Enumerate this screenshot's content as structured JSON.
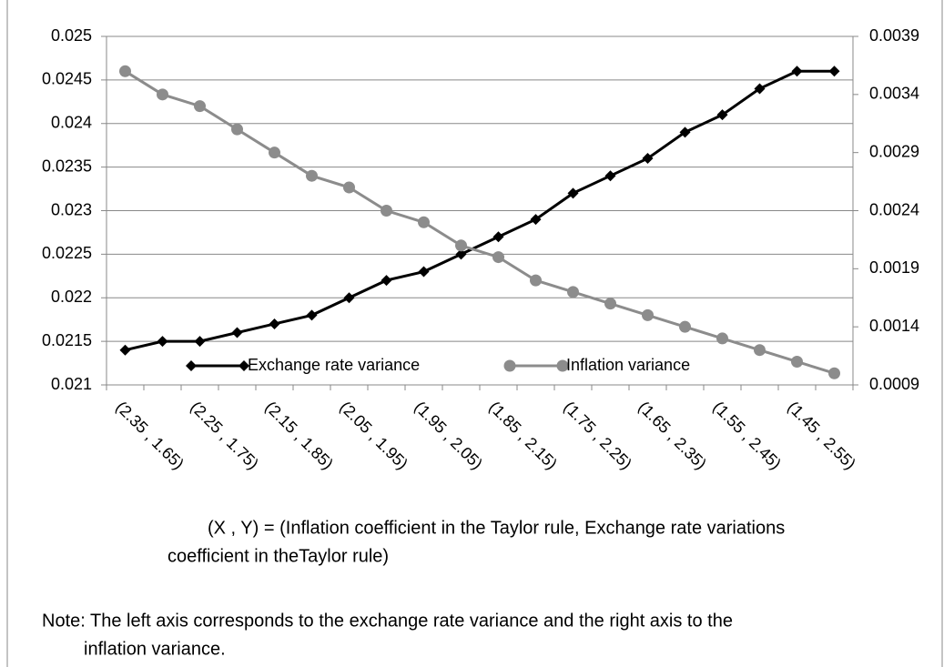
{
  "chart_data": {
    "type": "line",
    "categories": [
      "(2.35 , 1.65)",
      null,
      "(2.25 , 1.75)",
      null,
      "(2.15 , 1.85)",
      null,
      "(2.05 , 1.95)",
      null,
      "(1.95 , 2.05)",
      null,
      "(1.85 , 2.15)",
      null,
      "(1.75 , 2.25)",
      null,
      "(1.65 , 2.35)",
      null,
      "(1.55 , 2.45)",
      null,
      "(1.45 , 2.55)",
      null
    ],
    "series": [
      {
        "name": "Exchange rate variance",
        "color": "#000000",
        "marker": "diamond",
        "values": [
          0.0214,
          0.0215,
          0.0215,
          0.0216,
          0.0217,
          0.0218,
          0.022,
          0.0222,
          0.0223,
          0.0225,
          0.0227,
          0.0229,
          0.0232,
          0.0234,
          0.0236,
          0.0239,
          0.0241,
          0.0244,
          0.0246,
          0.0246
        ]
      },
      {
        "name": "Inflation variance",
        "color": "#8c8c8c",
        "marker": "circle",
        "axis": "y2",
        "values": [
          0.0036,
          0.0034,
          0.0033,
          0.0031,
          0.0029,
          0.0027,
          0.0026,
          0.0024,
          0.0023,
          0.0021,
          0.002,
          0.0018,
          0.0017,
          0.0016,
          0.0015,
          0.0014,
          0.0013,
          0.0012,
          0.0011,
          0.001
        ]
      }
    ],
    "ylim": [
      0.021,
      0.025
    ],
    "yticks": [
      0.021,
      0.0215,
      0.022,
      0.0225,
      0.023,
      0.0235,
      0.024,
      0.0245,
      0.025
    ],
    "y2lim": [
      0.0009,
      0.0039
    ],
    "y2ticks": [
      0.0009,
      0.0014,
      0.0019,
      0.0024,
      0.0029,
      0.0034,
      0.0039
    ],
    "grid": true,
    "legend": "bottom",
    "caption": [
      "(X , Y) = (Inflation coefficient in the Taylor rule, Exchange rate variations",
      "coefficient in theTaylor rule)"
    ],
    "note": [
      "Note: The left axis corresponds to the exchange rate variance and the right axis to the",
      "inflation variance."
    ]
  }
}
